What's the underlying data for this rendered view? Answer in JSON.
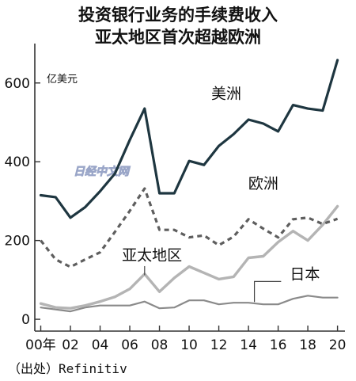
{
  "chart_data": {
    "type": "line",
    "title_lines": [
      "投资银行业务的手续费收入",
      "亚太地区首次超越欧洲"
    ],
    "unit_label": "亿美元",
    "source": "（出处）Refinitiv",
    "watermark": "日经中文网",
    "ylim": [
      -30,
      690
    ],
    "yticks": [
      0,
      200,
      400,
      600
    ],
    "ytick_labels": [
      "0",
      "200",
      "400",
      "600"
    ],
    "xlim": [
      1999.6,
      2020.5
    ],
    "xticks": [
      2000,
      2002,
      2004,
      2006,
      2008,
      2010,
      2012,
      2014,
      2016,
      2018,
      2020
    ],
    "xtick_labels": [
      "00年",
      "02",
      "04",
      "06",
      "08",
      "10",
      "12",
      "14",
      "16",
      "18",
      "20"
    ],
    "grid": false,
    "x": [
      2000,
      2001,
      2002,
      2003,
      2004,
      2005,
      2006,
      2007,
      2008,
      2009,
      2010,
      2011,
      2012,
      2013,
      2014,
      2015,
      2016,
      2017,
      2018,
      2019,
      2020
    ],
    "series": [
      {
        "name": "美洲",
        "color": "#1e3640",
        "style": "solid",
        "values": [
          315,
          310,
          258,
          285,
          325,
          370,
          455,
          535,
          320,
          320,
          402,
          392,
          440,
          470,
          507,
          497,
          477,
          544,
          535,
          530,
          658
        ]
      },
      {
        "name": "欧洲",
        "color": "#5e5e5e",
        "style": "dashed",
        "values": [
          200,
          152,
          133,
          152,
          170,
          222,
          275,
          332,
          227,
          227,
          208,
          213,
          188,
          210,
          254,
          230,
          208,
          254,
          258,
          242,
          255
        ]
      },
      {
        "name": "亚太地区",
        "color": "#b4b4b4",
        "style": "solid",
        "values": [
          40,
          30,
          28,
          35,
          45,
          57,
          77,
          115,
          70,
          105,
          134,
          118,
          102,
          108,
          156,
          160,
          196,
          224,
          200,
          240,
          287
        ]
      },
      {
        "name": "日本",
        "color": "#8a8a8a",
        "style": "solid",
        "values": [
          30,
          25,
          20,
          30,
          35,
          35,
          35,
          45,
          28,
          30,
          48,
          48,
          38,
          42,
          42,
          38,
          38,
          52,
          60,
          55,
          55
        ]
      }
    ],
    "series_labels": [
      {
        "text": "美洲",
        "x": 2012.5,
        "y": 560
      },
      {
        "text": "欧洲",
        "x": 2015.0,
        "y": 332
      },
      {
        "text": "亚太地区",
        "x": 2007.5,
        "y": 150
      },
      {
        "text": "日本",
        "x": 2017.8,
        "y": 102
      }
    ]
  }
}
